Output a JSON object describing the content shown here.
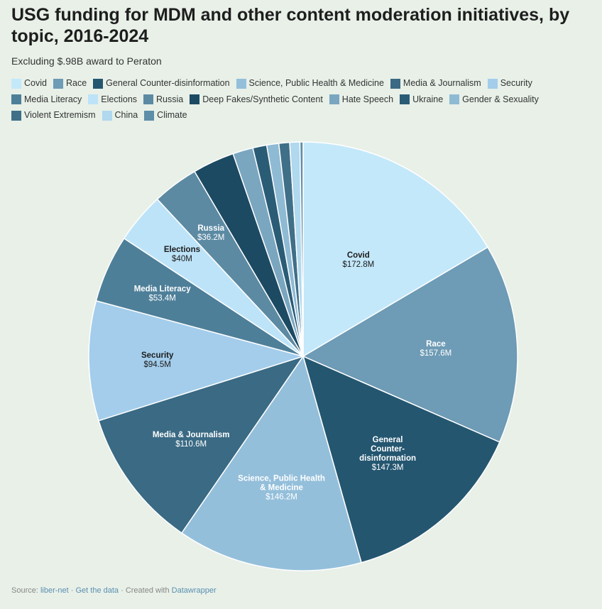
{
  "chart_data": {
    "type": "pie",
    "title": "USG funding for MDM and other content moderation initiatives, by topic, 2016-2024",
    "subtitle": "Excluding $.98B award to Peraton",
    "slices": [
      {
        "name": "Covid",
        "value": 172.8,
        "label": "$172.8M",
        "color": "#c3e8fa"
      },
      {
        "name": "Race",
        "value": 157.6,
        "label": "$157.6M",
        "color": "#6e9bb5"
      },
      {
        "name": "General Counter-disinformation",
        "value": 147.3,
        "label": "$147.3M",
        "color": "#245670"
      },
      {
        "name": "Science, Public Health & Medicine",
        "value": 146.2,
        "label": "$146.2M",
        "color": "#94bfdb"
      },
      {
        "name": "Media & Journalism",
        "value": 110.6,
        "label": "$110.6M",
        "color": "#3a6a84"
      },
      {
        "name": "Security",
        "value": 94.5,
        "label": "$94.5M",
        "color": "#a3cdeb"
      },
      {
        "name": "Media Literacy",
        "value": 53.4,
        "label": "$53.4M",
        "color": "#4e7f99"
      },
      {
        "name": "Elections",
        "value": 40,
        "label": "$40M",
        "color": "#bde3f8"
      },
      {
        "name": "Russia",
        "value": 36.2,
        "label": "$36.2M",
        "color": "#5c8aa3"
      },
      {
        "name": "Deep Fakes/Synthetic Content",
        "value": 33,
        "label": "",
        "color": "#1c4a62"
      },
      {
        "name": "Hate Speech",
        "value": 16,
        "label": "",
        "color": "#7aa6c0"
      },
      {
        "name": "Ukraine",
        "value": 11,
        "label": "",
        "color": "#2a5c76"
      },
      {
        "name": "Gender & Sexuality",
        "value": 9.5,
        "label": "",
        "color": "#8fbad4"
      },
      {
        "name": "Violent Extremism",
        "value": 8.5,
        "label": "",
        "color": "#406f88"
      },
      {
        "name": "China",
        "value": 8,
        "label": "",
        "color": "#b0d8ee"
      },
      {
        "name": "Climate",
        "value": 2.5,
        "label": "",
        "color": "#5f8ea8"
      }
    ],
    "slice_labels": [
      {
        "lines": [
          "Covid",
          "$172.8M"
        ],
        "color": "#1b1b1b"
      },
      {
        "lines": [
          "Race",
          "$157.6M"
        ],
        "color": "#ffffff"
      },
      {
        "lines": [
          "General",
          "Counter-",
          "disinformation",
          "$147.3M"
        ],
        "color": "#ffffff"
      },
      {
        "lines": [
          "Science, Public Health",
          "& Medicine",
          "$146.2M"
        ],
        "color": "#ffffff"
      },
      {
        "lines": [
          "Media & Journalism",
          "$110.6M"
        ],
        "color": "#ffffff"
      },
      {
        "lines": [
          "Security",
          "$94.5M"
        ],
        "color": "#1b1b1b"
      },
      {
        "lines": [
          "Media Literacy",
          "$53.4M"
        ],
        "color": "#ffffff"
      },
      {
        "lines": [
          "Elections",
          "$40M"
        ],
        "color": "#1b1b1b"
      },
      {
        "lines": [
          "Russia",
          "$36.2M"
        ],
        "color": "#ffffff"
      }
    ],
    "legend_position": "top",
    "start_angle": "top (12 o'clock)",
    "direction": "clockwise"
  },
  "footer": {
    "prefix": "Source: ",
    "source": "liber-net",
    "sep1": " · ",
    "get_data": "Get the data",
    "sep2": " · Created with ",
    "tool": "Datawrapper"
  }
}
